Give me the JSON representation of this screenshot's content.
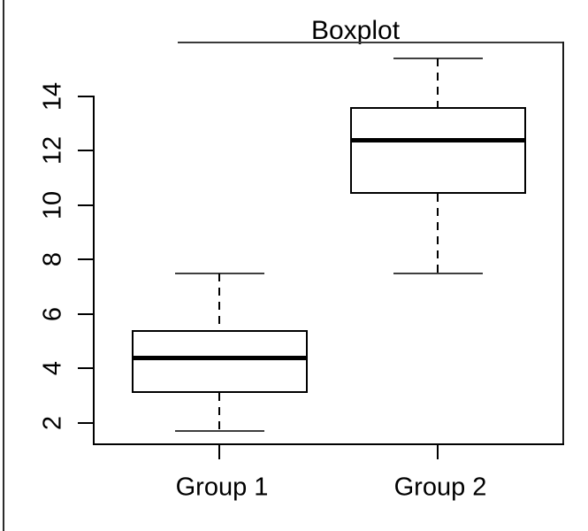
{
  "window": {
    "background": "#ffffff",
    "border_color": "#2b2b2b"
  },
  "chart_data": {
    "type": "boxplot",
    "title": "Boxplot",
    "categories": [
      "Group 1",
      "Group 2"
    ],
    "y_ticks": [
      2,
      4,
      6,
      8,
      10,
      12,
      14
    ],
    "ylim": [
      1.2,
      16.0
    ],
    "xlabel": "",
    "ylabel": "",
    "grid": false,
    "legend": "none",
    "orientation": "vertical",
    "series": [
      {
        "name": "Group 1",
        "lower_whisker": 1.7,
        "q1": 3.1,
        "median": 4.4,
        "q3": 5.4,
        "upper_whisker": 7.5
      },
      {
        "name": "Group 2",
        "lower_whisker": 7.5,
        "q1": 10.4,
        "median": 12.4,
        "q3": 13.6,
        "upper_whisker": 15.4
      }
    ],
    "colors": {
      "line": "#000000",
      "median": "#000000",
      "whisker_cap": "#3f3f3f",
      "box_fill": "#ffffff",
      "text": "#000000"
    }
  }
}
